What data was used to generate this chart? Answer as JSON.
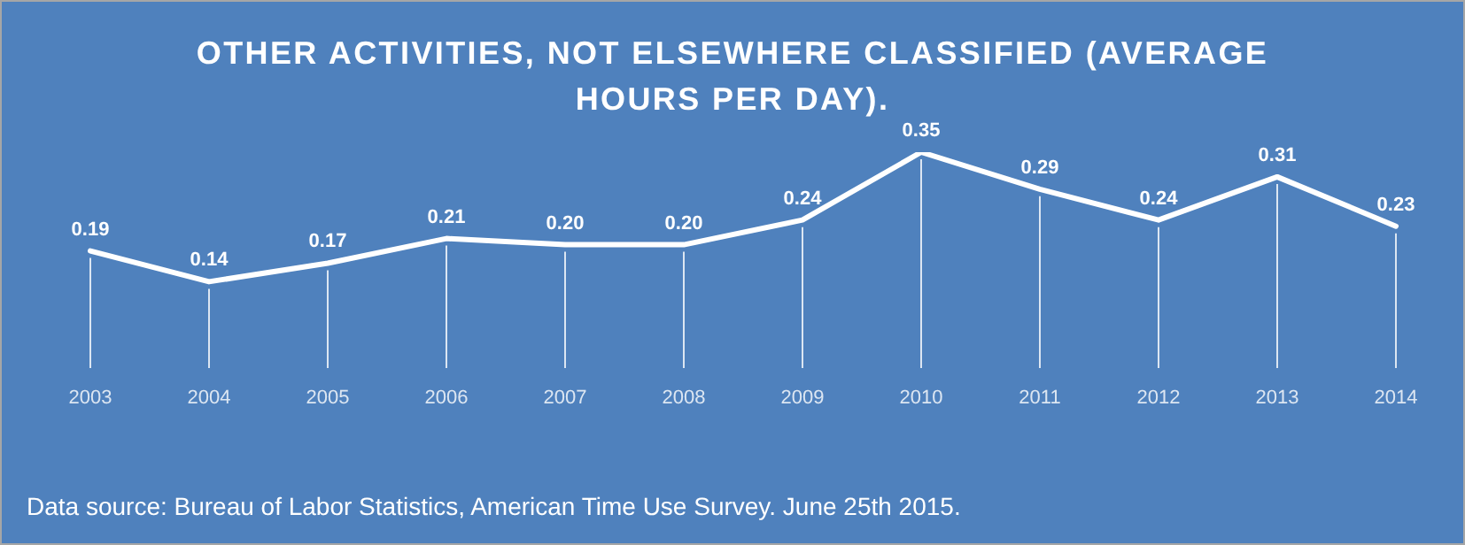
{
  "chart_data": {
    "type": "line",
    "title": "OTHER ACTIVITIES, NOT ELSEWHERE CLASSIFIED  (AVERAGE HOURS PER DAY).",
    "categories": [
      "2003",
      "2004",
      "2005",
      "2006",
      "2007",
      "2008",
      "2009",
      "2010",
      "2011",
      "2012",
      "2013",
      "2014"
    ],
    "values": [
      0.19,
      0.14,
      0.17,
      0.21,
      0.2,
      0.2,
      0.24,
      0.35,
      0.29,
      0.24,
      0.31,
      0.23
    ],
    "value_labels": [
      "0.19",
      "0.14",
      "0.17",
      "0.21",
      "0.20",
      "0.20",
      "0.24",
      "0.35",
      "0.29",
      "0.24",
      "0.31",
      "0.23"
    ],
    "color": "#ffffff",
    "grid": "x",
    "legend": false,
    "marker": "none",
    "line_style": "solid",
    "annotations": [
      "Data source: Bureau of Labor Statistics, American Time Use Survey. June 25th 2015."
    ]
  }
}
